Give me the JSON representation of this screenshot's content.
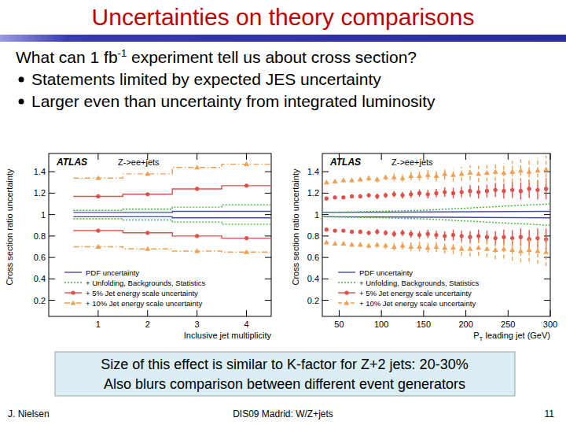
{
  "slide": {
    "title": "Uncertainties on theory comparisons",
    "question": [
      "What can 1 fb",
      "-1",
      " experiment tell us about cross section?"
    ],
    "bullets": [
      "Statements limited by expected JES uncertainty",
      "Larger even than uncertainty from integrated luminosity"
    ],
    "callout": [
      "Size of this effect is similar to K-factor for Z+2 jets: 20-30%",
      "Also blurs comparison between different event generators"
    ],
    "footer": {
      "author": "J. Nielsen",
      "event": "DIS09 Madrid: W/Z+jets",
      "page": 11
    }
  },
  "chart_data": [
    {
      "type": "step",
      "xlabel": "Inclusive jet multiplicity",
      "ylabel": "Cross section ratio uncertainty",
      "annotations": [
        "ATLAS",
        "Z->ee+jets"
      ],
      "bins": [
        0.5,
        1.5,
        2.5,
        3.5,
        4.5
      ],
      "xlim": [
        0,
        4.5
      ],
      "xticks": [
        1,
        2,
        3,
        4
      ],
      "ylim": [
        0.05,
        1.57
      ],
      "yticks": [
        0.2,
        0.4,
        0.6,
        0.8,
        1,
        1.2,
        1.4
      ],
      "grid": false,
      "legend": "lower left",
      "series": [
        {
          "name": "PDF uncertainty",
          "color": "#4a4aa8",
          "line_style": "solid",
          "values": [
            1.02,
            1.02,
            1.03,
            1.03
          ],
          "low": [
            0.98,
            0.98,
            0.97,
            0.97
          ]
        },
        {
          "name": "+ Unfolding, Backgrounds, Statistics",
          "color": "#33bb33",
          "line_style": "dotted",
          "values": [
            1.04,
            1.05,
            1.07,
            1.09
          ],
          "low": [
            0.96,
            0.95,
            0.93,
            0.91
          ]
        },
        {
          "name": "+  5% Jet energy scale uncertainty",
          "color": "#e0504a",
          "line_style": "solid",
          "marker": "circle",
          "values": [
            1.17,
            1.19,
            1.24,
            1.27
          ],
          "low": [
            0.85,
            0.83,
            0.8,
            0.78
          ]
        },
        {
          "name": "+ 10% Jet energy scale uncertainty",
          "color": "#f0a050",
          "line_style": "dashdot",
          "marker": "triangle",
          "values": [
            1.34,
            1.38,
            1.44,
            1.47
          ],
          "low": [
            0.7,
            0.68,
            0.66,
            0.65
          ]
        }
      ]
    },
    {
      "type": "errorbar",
      "xlabel": "PT leading jet (GeV)",
      "ylabel": "Cross section ratio uncertainty",
      "annotations": [
        "ATLAS",
        "Z->ee+jets"
      ],
      "xlim": [
        30,
        300
      ],
      "xticks": [
        50,
        100,
        150,
        200,
        250,
        300
      ],
      "ylim": [
        0.05,
        1.57
      ],
      "yticks": [
        0.2,
        0.4,
        0.6,
        0.8,
        1,
        1.2,
        1.4
      ],
      "grid": false,
      "legend": "lower left",
      "series": [
        {
          "name": "PDF uncertainty",
          "type": "line",
          "color": "#4a4aa8",
          "line_style": "solid",
          "x": [
            30,
            300
          ],
          "values": [
            1.02,
            1.03
          ],
          "low": [
            0.98,
            0.97
          ]
        },
        {
          "name": "+ Unfolding, Backgrounds, Statistics",
          "type": "line",
          "color": "#33bb33",
          "line_style": "dotted",
          "x": [
            30,
            100,
            150,
            200,
            250,
            300
          ],
          "values": [
            1.02,
            1.03,
            1.04,
            1.06,
            1.08,
            1.1
          ],
          "low": [
            0.98,
            0.97,
            0.96,
            0.94,
            0.92,
            0.9
          ]
        },
        {
          "name": "+  5% Jet energy scale uncertainty",
          "type": "errorbar",
          "color": "#e0504a",
          "line_style": "solid",
          "marker": "circle",
          "x": [
            35,
            45,
            55,
            65,
            75,
            85,
            95,
            105,
            115,
            125,
            135,
            145,
            155,
            165,
            175,
            185,
            195,
            205,
            215,
            225,
            235,
            245,
            255,
            265,
            275,
            285,
            295
          ],
          "values": [
            1.15,
            1.16,
            1.16,
            1.17,
            1.17,
            1.18,
            1.17,
            1.18,
            1.19,
            1.18,
            1.19,
            1.2,
            1.19,
            1.2,
            1.21,
            1.2,
            1.21,
            1.22,
            1.21,
            1.22,
            1.23,
            1.22,
            1.23,
            1.22,
            1.24,
            1.23,
            1.24
          ],
          "errors": [
            0.01,
            0.01,
            0.015,
            0.015,
            0.02,
            0.02,
            0.025,
            0.025,
            0.03,
            0.03,
            0.035,
            0.035,
            0.04,
            0.04,
            0.045,
            0.05,
            0.05,
            0.055,
            0.06,
            0.06,
            0.065,
            0.07,
            0.075,
            0.08,
            0.085,
            0.09,
            0.1
          ],
          "low": [
            0.86,
            0.85,
            0.85,
            0.84,
            0.84,
            0.83,
            0.84,
            0.83,
            0.82,
            0.83,
            0.82,
            0.81,
            0.82,
            0.81,
            0.8,
            0.81,
            0.8,
            0.79,
            0.8,
            0.79,
            0.78,
            0.79,
            0.78,
            0.79,
            0.77,
            0.78,
            0.77
          ],
          "low_errors": [
            0.01,
            0.01,
            0.015,
            0.015,
            0.02,
            0.02,
            0.025,
            0.025,
            0.03,
            0.03,
            0.035,
            0.035,
            0.04,
            0.04,
            0.045,
            0.05,
            0.05,
            0.055,
            0.06,
            0.06,
            0.065,
            0.07,
            0.075,
            0.08,
            0.085,
            0.09,
            0.1
          ]
        },
        {
          "name": "+ 10% Jet energy scale uncertainty",
          "type": "errorbar",
          "color": "#f0a050",
          "line_style": "dashed",
          "marker": "triangle",
          "x": [
            35,
            45,
            55,
            65,
            75,
            85,
            95,
            105,
            115,
            125,
            135,
            145,
            155,
            165,
            175,
            185,
            195,
            205,
            215,
            225,
            235,
            245,
            255,
            265,
            275,
            285,
            295
          ],
          "values": [
            1.3,
            1.31,
            1.32,
            1.32,
            1.33,
            1.34,
            1.33,
            1.35,
            1.35,
            1.34,
            1.36,
            1.36,
            1.37,
            1.36,
            1.38,
            1.37,
            1.38,
            1.39,
            1.38,
            1.39,
            1.4,
            1.39,
            1.4,
            1.41,
            1.4,
            1.41,
            1.42
          ],
          "errors": [
            0.015,
            0.015,
            0.02,
            0.02,
            0.025,
            0.025,
            0.03,
            0.03,
            0.035,
            0.035,
            0.04,
            0.045,
            0.045,
            0.05,
            0.055,
            0.06,
            0.065,
            0.07,
            0.075,
            0.08,
            0.085,
            0.09,
            0.1,
            0.105,
            0.11,
            0.12,
            0.13
          ],
          "low": [
            0.74,
            0.73,
            0.73,
            0.72,
            0.72,
            0.71,
            0.72,
            0.71,
            0.7,
            0.71,
            0.7,
            0.7,
            0.69,
            0.7,
            0.69,
            0.69,
            0.68,
            0.68,
            0.69,
            0.68,
            0.67,
            0.68,
            0.67,
            0.66,
            0.67,
            0.66,
            0.65
          ],
          "low_errors": [
            0.015,
            0.015,
            0.02,
            0.02,
            0.025,
            0.025,
            0.03,
            0.03,
            0.035,
            0.035,
            0.04,
            0.045,
            0.045,
            0.05,
            0.055,
            0.06,
            0.065,
            0.07,
            0.075,
            0.08,
            0.085,
            0.09,
            0.1,
            0.105,
            0.11,
            0.12,
            0.13
          ]
        }
      ]
    }
  ]
}
